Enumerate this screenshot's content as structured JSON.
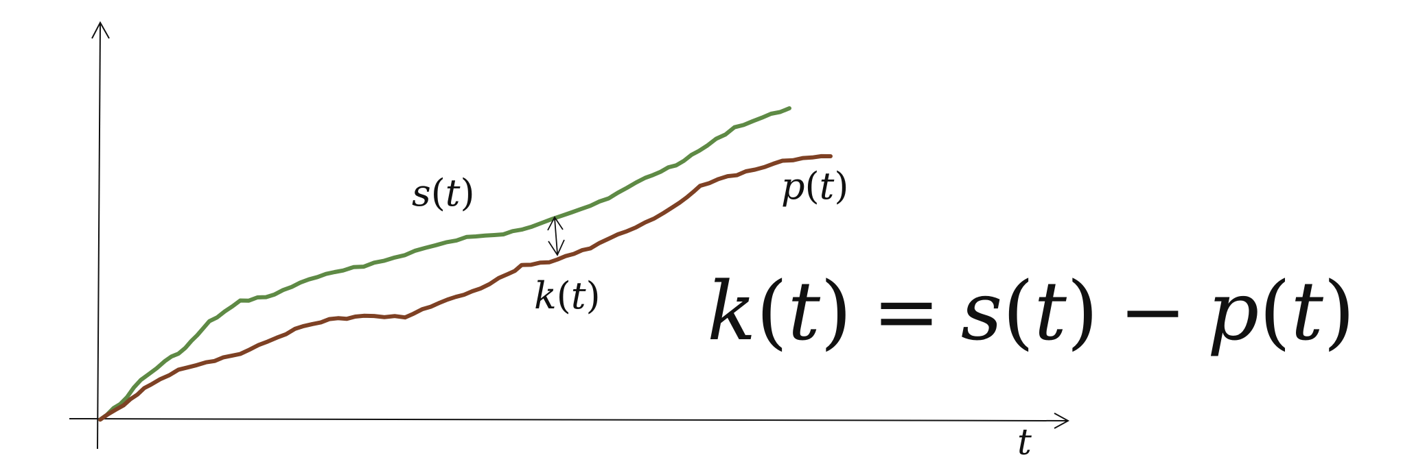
{
  "diagram": {
    "x_axis_label": "t",
    "curves": [
      {
        "id": "s",
        "label_fn": "s",
        "label_var": "t",
        "color": "#5e8a45"
      },
      {
        "id": "p",
        "label_fn": "p",
        "label_var": "t",
        "color": "#7e4124"
      }
    ],
    "gap_label_fn": "k",
    "gap_label_var": "t",
    "equation": {
      "lhs_fn": "k",
      "var": "t",
      "equals": "=",
      "rhs1_fn": "s",
      "minus": "−",
      "rhs2_fn": "p"
    },
    "axis_color": "#111111"
  }
}
